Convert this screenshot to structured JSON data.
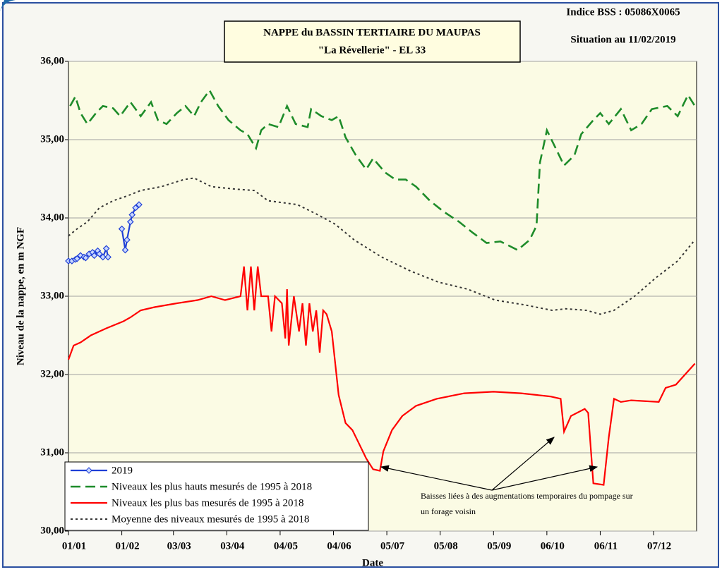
{
  "chart_data": {
    "type": "line",
    "title": "NAPPE du BASSIN TERTIAIRE DU MAUPAS",
    "subtitle": "\"La Révellerie\" - EL 33",
    "header": [
      "Indice BSS : 05086X0065",
      "Situation au 11/02/2019"
    ],
    "y_label": "Niveau de la nappe, en m NGF",
    "x_label": "Date",
    "annotation": [
      "Baisses liées à des augmentations temporaires du pompage sur",
      "un forage voisin"
    ],
    "xlim": [
      0,
      365
    ],
    "xticks": [
      {
        "value": 0,
        "label": "01/01"
      },
      {
        "value": 31,
        "label": "01/02"
      },
      {
        "value": 61,
        "label": "03/03"
      },
      {
        "value": 92,
        "label": "03/04"
      },
      {
        "value": 123,
        "label": "04/05"
      },
      {
        "value": 154,
        "label": "04/06"
      },
      {
        "value": 185,
        "label": "05/07"
      },
      {
        "value": 216,
        "label": "05/08"
      },
      {
        "value": 247,
        "label": "05/09"
      },
      {
        "value": 278,
        "label": "06/10"
      },
      {
        "value": 309,
        "label": "06/11"
      },
      {
        "value": 340,
        "label": "07/12"
      }
    ],
    "ylim": [
      30,
      36
    ],
    "yticks": [
      {
        "value": 30,
        "label": "30,00"
      },
      {
        "value": 31,
        "label": "31,00"
      },
      {
        "value": 32,
        "label": "32,00"
      },
      {
        "value": 33,
        "label": "33,00"
      },
      {
        "value": 34,
        "label": "34,00"
      },
      {
        "value": 35,
        "label": "35,00"
      },
      {
        "value": 36,
        "label": "36,00"
      }
    ],
    "grid": true,
    "legend": "lower left",
    "series": [
      {
        "name": "2019",
        "color": "#1f3fd6",
        "dash": "solid",
        "marker": "diamond",
        "x": [
          0,
          2,
          4,
          5,
          7,
          9,
          10,
          12,
          14,
          15,
          17,
          18,
          20,
          22,
          23,
          27,
          31,
          33,
          34,
          36,
          37,
          39,
          41
        ],
        "values": [
          33.45,
          33.45,
          33.47,
          33.48,
          33.52,
          33.5,
          33.49,
          33.54,
          33.56,
          33.52,
          33.58,
          33.54,
          33.5,
          33.61,
          33.5,
          null,
          33.86,
          33.59,
          33.72,
          33.95,
          34.04,
          34.13,
          34.17
        ]
      },
      {
        "name": "Niveaux les plus hauts mesurés de 1995 à 2018",
        "color": "#1e8c2a",
        "dash": "dashed",
        "x": [
          1,
          4,
          7,
          11,
          16,
          20,
          26,
          30,
          36,
          42,
          48,
          52,
          57,
          63,
          68,
          73,
          77,
          82,
          87,
          93,
          100,
          104,
          109,
          112,
          116,
          122,
          127,
          132,
          139,
          141,
          147,
          153,
          157,
          161,
          167,
          173,
          177,
          184,
          190,
          196,
          202,
          210,
          218,
          227,
          235,
          243,
          251,
          261,
          268,
          272,
          274,
          278,
          284,
          288,
          294,
          298,
          305,
          309,
          314,
          321,
          327,
          333,
          339,
          348,
          354,
          360,
          364
        ],
        "values": [
          35.43,
          35.55,
          35.34,
          35.2,
          35.34,
          35.43,
          35.4,
          35.3,
          35.48,
          35.3,
          35.48,
          35.25,
          35.2,
          35.34,
          35.43,
          35.3,
          35.48,
          35.63,
          35.43,
          35.25,
          35.12,
          35.07,
          34.89,
          35.12,
          35.2,
          35.16,
          35.43,
          35.2,
          35.16,
          35.39,
          35.3,
          35.25,
          35.3,
          35.03,
          34.8,
          34.62,
          34.76,
          34.58,
          34.49,
          34.49,
          34.4,
          34.22,
          34.08,
          33.95,
          33.81,
          33.68,
          33.7,
          33.59,
          33.72,
          33.9,
          34.71,
          35.12,
          34.85,
          34.67,
          34.8,
          35.07,
          35.25,
          35.34,
          35.2,
          35.39,
          35.12,
          35.2,
          35.39,
          35.43,
          35.3,
          35.57,
          35.43
        ]
      },
      {
        "name": "Niveaux les plus bas mesurés de 1995 à 2018",
        "color": "#ff0000",
        "dash": "solid",
        "x": [
          0,
          3,
          7,
          13,
          22,
          32,
          36,
          42,
          50,
          63,
          75,
          83,
          91,
          100,
          102,
          104,
          106,
          108,
          110,
          112,
          116,
          118,
          120,
          124,
          126,
          127,
          128,
          131,
          134,
          136,
          138,
          140,
          142,
          144,
          146,
          148,
          150,
          153,
          157,
          161,
          165,
          169,
          173,
          177,
          181,
          183,
          188,
          194,
          202,
          214,
          230,
          247,
          263,
          280,
          286,
          288,
          292,
          300,
          302,
          305,
          311,
          314,
          317,
          321,
          327,
          343,
          347,
          353,
          364
        ],
        "values": [
          32.19,
          32.37,
          32.41,
          32.5,
          32.59,
          32.68,
          32.73,
          32.82,
          32.86,
          32.91,
          32.95,
          33.0,
          32.95,
          33.0,
          33.38,
          32.82,
          33.38,
          32.82,
          33.38,
          33.0,
          33.0,
          32.55,
          33.0,
          32.91,
          32.46,
          33.09,
          32.37,
          33.0,
          32.55,
          32.91,
          32.37,
          32.91,
          32.55,
          32.82,
          32.28,
          32.82,
          32.77,
          32.55,
          31.74,
          31.38,
          31.29,
          31.11,
          30.93,
          30.79,
          30.77,
          31.02,
          31.29,
          31.47,
          31.6,
          31.69,
          31.76,
          31.78,
          31.76,
          31.72,
          31.69,
          31.27,
          31.47,
          31.56,
          31.51,
          30.61,
          30.59,
          31.2,
          31.69,
          31.65,
          31.67,
          31.65,
          31.83,
          31.87,
          32.14
        ]
      },
      {
        "name": "Moyenne des niveaux mesurés de 1995 à 2018",
        "color": "#333333",
        "dash": "dotted",
        "x": [
          0,
          5,
          11,
          18,
          26,
          34,
          42,
          54,
          67,
          73,
          83,
          96,
          108,
          116,
          133,
          145,
          155,
          166,
          182,
          199,
          215,
          232,
          248,
          265,
          281,
          289,
          301,
          309,
          317,
          329,
          341,
          354,
          364
        ],
        "values": [
          33.77,
          33.86,
          33.95,
          34.13,
          34.22,
          34.28,
          34.35,
          34.4,
          34.49,
          34.51,
          34.4,
          34.37,
          34.35,
          34.22,
          34.17,
          34.04,
          33.92,
          33.72,
          33.5,
          33.32,
          33.18,
          33.09,
          32.95,
          32.89,
          32.82,
          32.84,
          32.82,
          32.77,
          32.82,
          33.0,
          33.23,
          33.45,
          33.72
        ]
      }
    ]
  }
}
